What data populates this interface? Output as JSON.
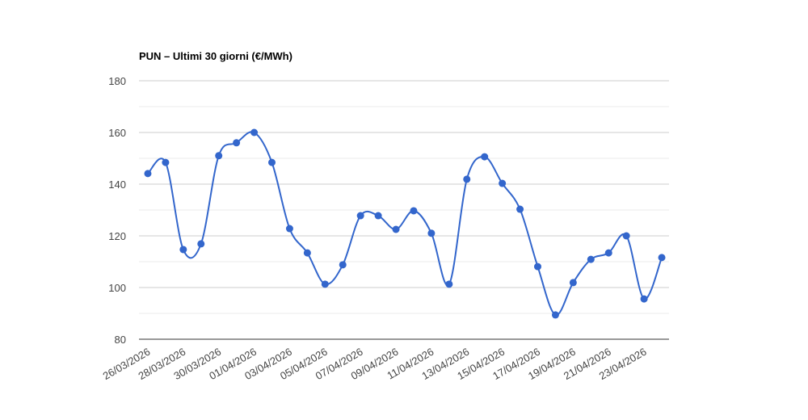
{
  "chart_data": {
    "type": "line",
    "title": "PUN – Ultimi 30 giorni (€/MWh)",
    "categories": [
      "26/03/2026",
      null,
      "28/03/2026",
      null,
      "30/03/2026",
      null,
      "01/04/2026",
      null,
      "03/04/2026",
      null,
      "05/04/2026",
      null,
      "07/04/2026",
      null,
      "09/04/2026",
      null,
      "11/04/2026",
      null,
      "13/04/2026",
      null,
      "15/04/2026",
      null,
      "17/04/2026",
      null,
      "19/04/2026",
      null,
      "21/04/2026",
      null,
      "23/04/2026",
      null
    ],
    "series": [
      {
        "name": "PUN",
        "color": "#3366cc",
        "values": [
          144.1,
          148.4,
          114.7,
          116.9,
          151,
          156,
          160,
          148.4,
          122.8,
          113.4,
          101.3,
          108.8,
          127.8,
          127.8,
          122.5,
          129.7,
          121,
          101.3,
          141.9,
          150.6,
          140.3,
          130.3,
          108.1,
          89.4,
          101.9,
          110.9,
          113.4,
          120,
          95.6,
          111.6
        ]
      }
    ],
    "ylim": [
      80,
      180
    ],
    "yticks": [
      80,
      100,
      120,
      140,
      160,
      180
    ],
    "grid": true,
    "minor_grid": true,
    "smooth": true,
    "legend": false
  }
}
